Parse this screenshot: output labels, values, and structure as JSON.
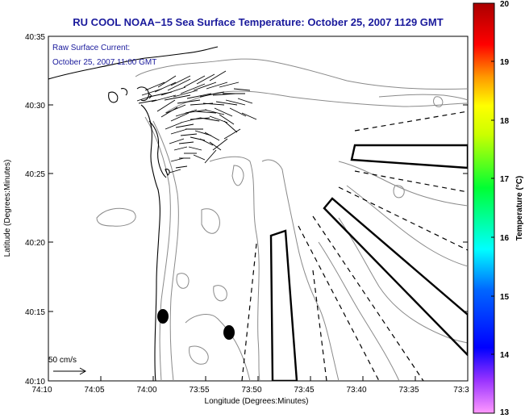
{
  "title": "RU COOL  NOAA−15  Sea Surface Temperature:  October 25, 2007 1129 GMT",
  "inset": {
    "line1": "Raw Surface Current:",
    "line2": "October 25, 2007 11:00 GMT"
  },
  "axes": {
    "xlabel": "Longitude (Degrees:Minutes)",
    "ylabel": "Latitude (Degrees:Minutes)",
    "x_ticks": [
      "74:10",
      "74:05",
      "74:00",
      "73:55",
      "73:50",
      "73:45",
      "73:40",
      "73:35",
      "73:3"
    ],
    "y_ticks": [
      "40:35",
      "40:30",
      "40:25",
      "40:20",
      "40:15",
      "40:10"
    ]
  },
  "scale_label": "50 cm/s",
  "colorbar": {
    "label": "Temperature (°C)",
    "ticks": [
      "20",
      "19",
      "18",
      "17",
      "16",
      "15",
      "14",
      "13"
    ],
    "min": 13,
    "max": 20
  },
  "colors": {
    "title": "#1a1a9c",
    "contour": "#8a8a8a",
    "land": "#000000"
  }
}
